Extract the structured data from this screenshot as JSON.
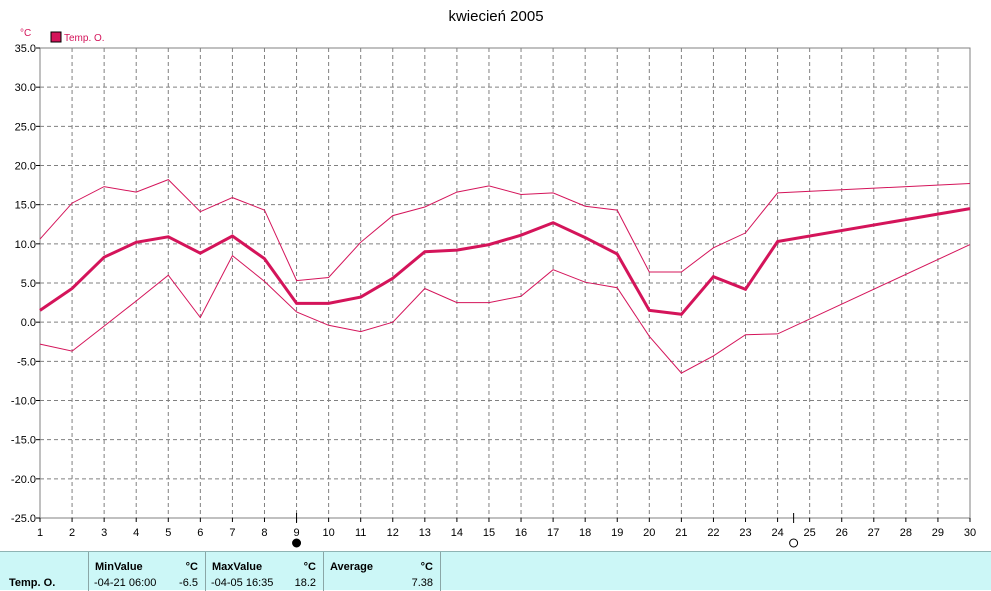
{
  "chart_data": {
    "type": "line",
    "title": "kwiecień 2005",
    "unit": "°C",
    "x": [
      1,
      2,
      3,
      4,
      5,
      6,
      7,
      8,
      9,
      10,
      11,
      12,
      13,
      14,
      15,
      16,
      17,
      18,
      19,
      20,
      21,
      22,
      23,
      24,
      25,
      26,
      27,
      28,
      29,
      30
    ],
    "x_ticks": [
      "1",
      "2",
      "3",
      "4",
      "5",
      "6",
      "7",
      "8",
      "9",
      "10",
      "11",
      "12",
      "13",
      "14",
      "15",
      "16",
      "17",
      "18",
      "19",
      "20",
      "21",
      "22",
      "23",
      "24",
      "25",
      "26",
      "27",
      "28",
      "29",
      "30"
    ],
    "ylim": [
      -25,
      35
    ],
    "y_ticks": [
      "35.0",
      "30.0",
      "25.0",
      "20.0",
      "15.0",
      "10.0",
      "5.0",
      "0.0",
      "-5.0",
      "-10.0",
      "-15.0",
      "-20.0",
      "-25.0"
    ],
    "grid": true,
    "legend": {
      "label": "Temp. O.",
      "position": "top-left"
    },
    "series": [
      {
        "name": "Temp. O.",
        "role": "average",
        "x": [
          1,
          2,
          3,
          4,
          5,
          6,
          7,
          8,
          9,
          10,
          11,
          12,
          13,
          14,
          15,
          16,
          17,
          18,
          19,
          20,
          21,
          22,
          23,
          24,
          30
        ],
        "values": [
          1.5,
          4.3,
          8.3,
          10.2,
          10.9,
          8.8,
          11.0,
          8.1,
          2.4,
          2.4,
          3.2,
          5.6,
          9.0,
          9.2,
          9.9,
          11.1,
          12.7,
          10.8,
          8.7,
          1.5,
          1.0,
          5.8,
          4.2,
          10.3,
          14.5
        ]
      },
      {
        "role": "max",
        "x": [
          1,
          2,
          3,
          4,
          5,
          6,
          7,
          8,
          9,
          10,
          11,
          12,
          13,
          14,
          15,
          16,
          17,
          18,
          19,
          20,
          21,
          22,
          23,
          24,
          30
        ],
        "values": [
          10.6,
          15.2,
          17.3,
          16.6,
          18.2,
          14.1,
          15.9,
          14.3,
          5.3,
          5.7,
          10.2,
          13.6,
          14.7,
          16.6,
          17.4,
          16.3,
          16.5,
          14.8,
          14.3,
          6.4,
          6.4,
          9.5,
          11.4,
          16.5,
          17.7
        ]
      },
      {
        "role": "min",
        "x": [
          1,
          2,
          3,
          4,
          5,
          6,
          7,
          8,
          9,
          10,
          11,
          12,
          13,
          14,
          15,
          16,
          17,
          18,
          19,
          20,
          21,
          22,
          23,
          24,
          30
        ],
        "values": [
          -2.8,
          -3.7,
          -0.5,
          2.7,
          6.0,
          0.6,
          8.5,
          5.2,
          1.3,
          -0.4,
          -1.2,
          0.0,
          4.3,
          2.5,
          2.5,
          3.3,
          6.7,
          5.1,
          4.4,
          -1.8,
          -6.5,
          -4.3,
          -1.6,
          -1.5,
          9.9
        ]
      }
    ],
    "markers": [
      {
        "x": 9,
        "type": "filled-circle"
      },
      {
        "x": 24.5,
        "type": "open-circle"
      }
    ],
    "colors": {
      "series": "#d4145a",
      "grid": "#808080",
      "frame": "#808080"
    }
  },
  "stats": {
    "series_label": "Temp. O.",
    "min_header": "MinValue",
    "min_unit": "°C",
    "min_time": "-04-21  06:00",
    "min_value": "-6.5",
    "max_header": "MaxValue",
    "max_unit": "°C",
    "max_time": "-04-05  16:35",
    "max_value": "18.2",
    "avg_header": "Average",
    "avg_unit": "°C",
    "avg_value": "7.38"
  }
}
